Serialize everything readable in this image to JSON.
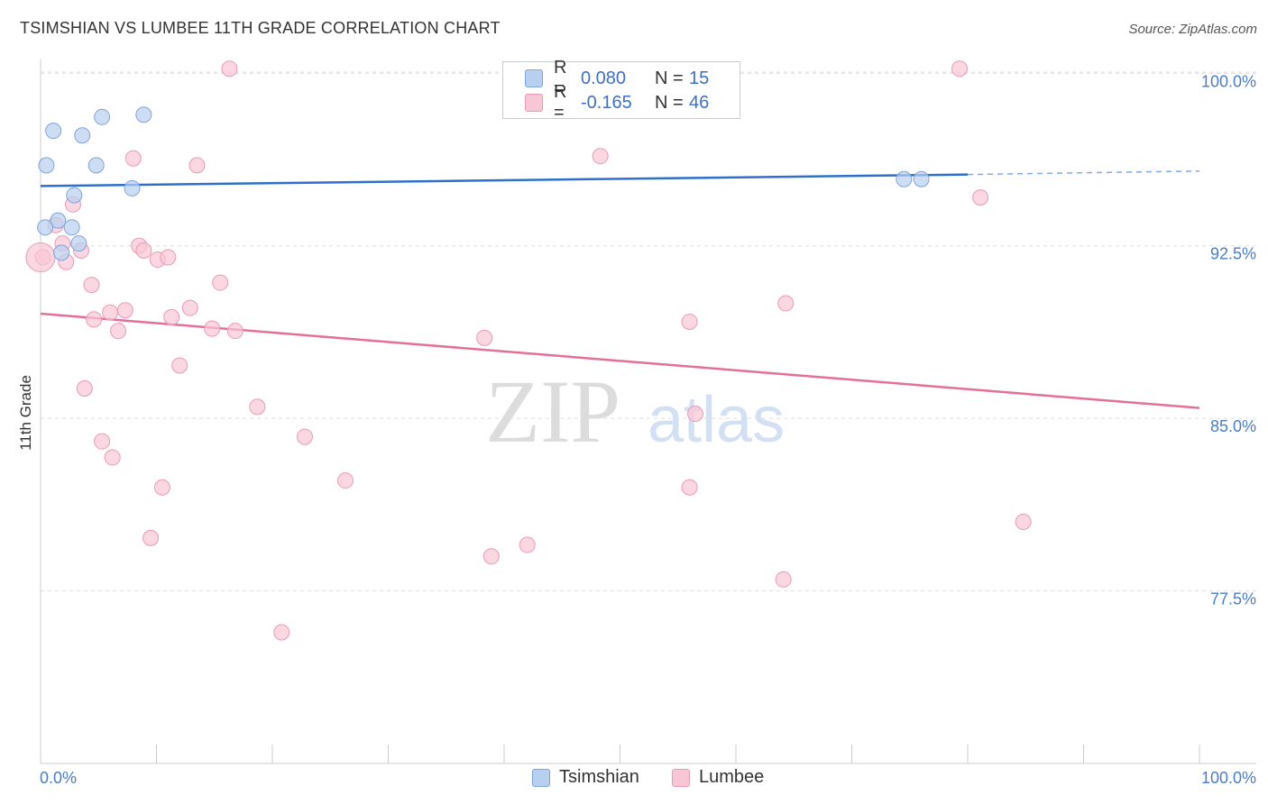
{
  "title": "TSIMSHIAN VS LUMBEE 11TH GRADE CORRELATION CHART",
  "source": "Source: ZipAtlas.com",
  "watermark": {
    "zip": "ZIP",
    "atlas": "atlas"
  },
  "legend": {
    "rows": [
      {
        "r_label": "R =",
        "r_value": "0.080",
        "n_label": "N =",
        "n_value": "15"
      },
      {
        "r_label": "R =",
        "r_value": "-0.165",
        "n_label": "N =",
        "n_value": "46"
      }
    ]
  },
  "bottom_legend": {
    "tsimshian": "Tsimshian",
    "lumbee": "Lumbee"
  },
  "colors": {
    "tsimshian_fill": "#b8d0f0",
    "tsimshian_stroke": "#7fa4d8",
    "tsimshian_line": "#2f6fcc",
    "lumbee_fill": "#f9c6d6",
    "lumbee_stroke": "#e99ab5",
    "lumbee_line": "#e46f98",
    "tick_text": "#4a7cc7",
    "grid": "#dddddd"
  },
  "chart_data": {
    "type": "scatter",
    "title": "TSIMSHIAN VS LUMBEE 11TH GRADE CORRELATION CHART",
    "xlabel": "",
    "ylabel": "11th Grade",
    "xlim": [
      0,
      100
    ],
    "ylim": [
      70.0,
      100.6
    ],
    "x_tick_labels": [
      "0.0%",
      "100.0%"
    ],
    "y_ticks": [
      77.5,
      85.0,
      92.5,
      100.0
    ],
    "y_tick_labels": [
      "77.5%",
      "85.0%",
      "92.5%",
      "100.0%"
    ],
    "grid": true,
    "legend_position": "top-center",
    "series": [
      {
        "name": "Tsimshian",
        "r": 0.08,
        "n": 15,
        "points": [
          {
            "x": 0.5,
            "y": 96.0
          },
          {
            "x": 1.1,
            "y": 97.5
          },
          {
            "x": 3.6,
            "y": 97.3
          },
          {
            "x": 5.3,
            "y": 98.1
          },
          {
            "x": 8.9,
            "y": 98.2
          },
          {
            "x": 4.8,
            "y": 96.0
          },
          {
            "x": 2.9,
            "y": 94.7
          },
          {
            "x": 7.9,
            "y": 95.0
          },
          {
            "x": 1.5,
            "y": 93.6
          },
          {
            "x": 0.4,
            "y": 93.3
          },
          {
            "x": 2.7,
            "y": 93.3
          },
          {
            "x": 3.3,
            "y": 92.6
          },
          {
            "x": 1.8,
            "y": 92.2
          },
          {
            "x": 74.5,
            "y": 95.4
          },
          {
            "x": 76.0,
            "y": 95.4
          }
        ],
        "trend": {
          "x0": 0,
          "y0": 95.1,
          "x1": 80,
          "y1": 95.6,
          "x_dash_end": 100,
          "y_dash_end": 95.75
        }
      },
      {
        "name": "Lumbee",
        "r": -0.165,
        "n": 46,
        "points": [
          {
            "x": 16.3,
            "y": 100.2
          },
          {
            "x": 79.3,
            "y": 100.2
          },
          {
            "x": 8.0,
            "y": 96.3
          },
          {
            "x": 13.5,
            "y": 96.0
          },
          {
            "x": 48.3,
            "y": 96.4
          },
          {
            "x": 2.8,
            "y": 94.3
          },
          {
            "x": 81.1,
            "y": 94.6
          },
          {
            "x": 1.3,
            "y": 93.4
          },
          {
            "x": 1.9,
            "y": 92.6
          },
          {
            "x": 8.5,
            "y": 92.5
          },
          {
            "x": 3.5,
            "y": 92.3
          },
          {
            "x": 8.9,
            "y": 92.3
          },
          {
            "x": 10.1,
            "y": 91.9
          },
          {
            "x": 11.0,
            "y": 92.0
          },
          {
            "x": 2.2,
            "y": 91.8
          },
          {
            "x": 0.2,
            "y": 92.0
          },
          {
            "x": 4.4,
            "y": 90.8
          },
          {
            "x": 15.5,
            "y": 90.9
          },
          {
            "x": 12.9,
            "y": 89.8
          },
          {
            "x": 7.3,
            "y": 89.7
          },
          {
            "x": 6.0,
            "y": 89.6
          },
          {
            "x": 4.6,
            "y": 89.3
          },
          {
            "x": 11.3,
            "y": 89.4
          },
          {
            "x": 6.7,
            "y": 88.8
          },
          {
            "x": 14.8,
            "y": 88.9
          },
          {
            "x": 16.8,
            "y": 88.8
          },
          {
            "x": 56.0,
            "y": 89.2
          },
          {
            "x": 64.3,
            "y": 90.0
          },
          {
            "x": 38.3,
            "y": 88.5
          },
          {
            "x": 12.0,
            "y": 87.3
          },
          {
            "x": 3.8,
            "y": 86.3
          },
          {
            "x": 18.7,
            "y": 85.5
          },
          {
            "x": 56.5,
            "y": 85.2
          },
          {
            "x": 22.8,
            "y": 84.2
          },
          {
            "x": 5.3,
            "y": 84.0
          },
          {
            "x": 6.2,
            "y": 83.3
          },
          {
            "x": 26.3,
            "y": 82.3
          },
          {
            "x": 10.5,
            "y": 82.0
          },
          {
            "x": 56.0,
            "y": 82.0
          },
          {
            "x": 84.8,
            "y": 80.5
          },
          {
            "x": 9.5,
            "y": 79.8
          },
          {
            "x": 42.0,
            "y": 79.5
          },
          {
            "x": 38.9,
            "y": 79.0
          },
          {
            "x": 64.1,
            "y": 78.0
          },
          {
            "x": 20.8,
            "y": 75.7
          },
          {
            "x": 0.0,
            "y": 92.0
          }
        ],
        "trend": {
          "x0": 0,
          "y0": 89.55,
          "x1": 100,
          "y1": 85.45
        }
      }
    ]
  }
}
